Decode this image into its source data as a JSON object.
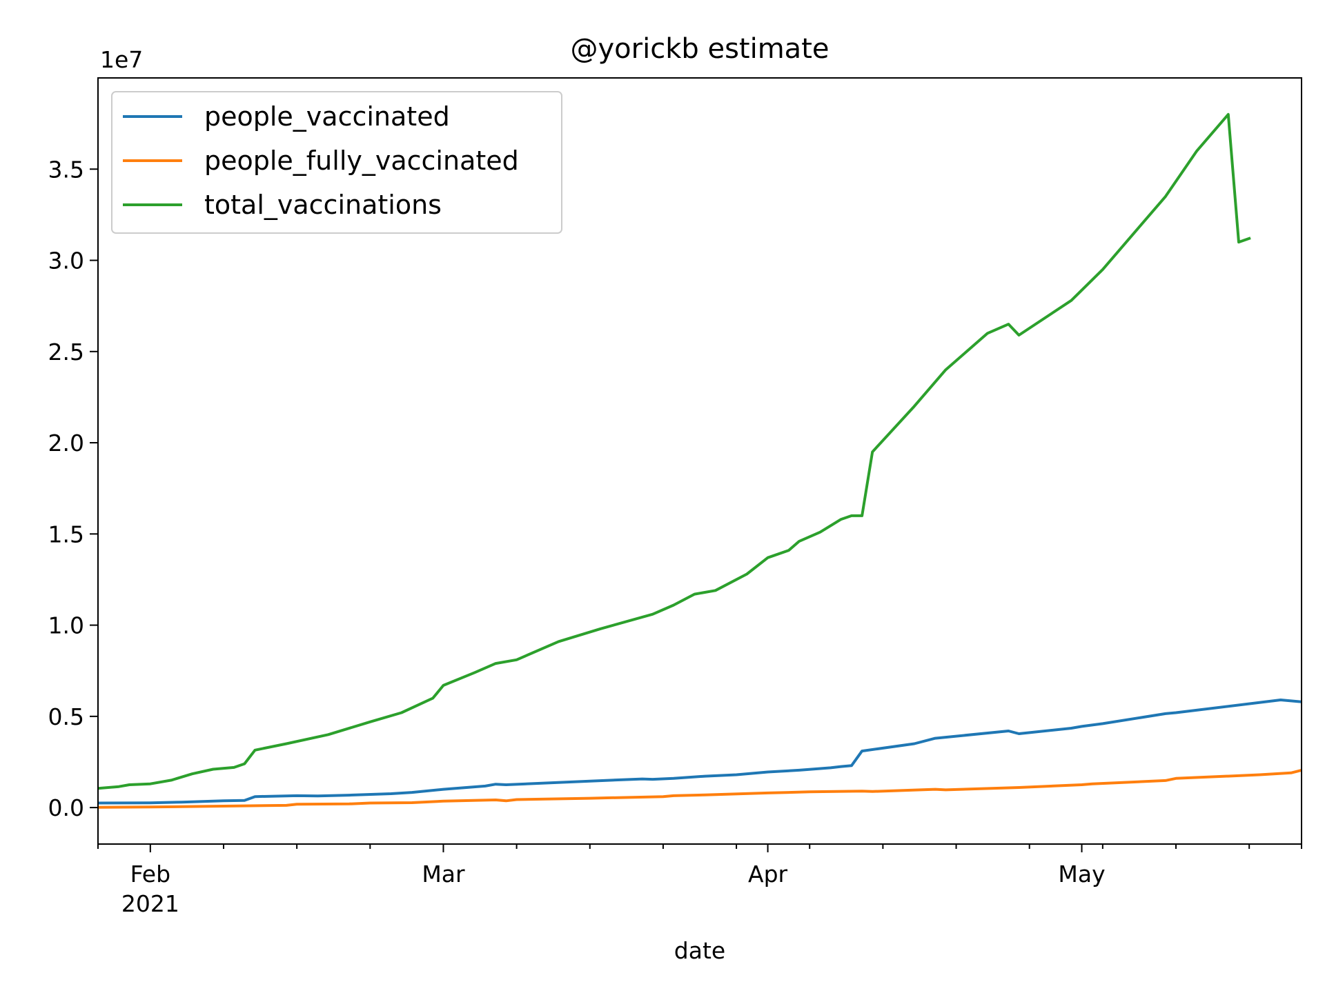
{
  "chart_data": {
    "type": "line",
    "title": "@yorickb estimate",
    "xlabel": "date",
    "ylabel": "",
    "y_offset_label": "1e7",
    "y_scale_factor": 10000000,
    "xlim": [
      "2021-01-27",
      "2021-05-22"
    ],
    "ylim": [
      -2000000,
      40000000
    ],
    "grid": false,
    "legend_position": "upper-left",
    "x_major_ticks": [
      {
        "date": "2021-02-01",
        "label": "Feb",
        "sublabel": "2021"
      },
      {
        "date": "2021-03-01",
        "label": "Mar",
        "sublabel": ""
      },
      {
        "date": "2021-04-01",
        "label": "Apr",
        "sublabel": ""
      },
      {
        "date": "2021-05-01",
        "label": "May",
        "sublabel": ""
      }
    ],
    "x_minor_ticks": [
      "2021-01-27",
      "2021-02-08",
      "2021-02-15",
      "2021-02-22",
      "2021-03-08",
      "2021-03-15",
      "2021-03-22",
      "2021-03-29",
      "2021-04-05",
      "2021-04-12",
      "2021-04-19",
      "2021-04-26",
      "2021-05-03",
      "2021-05-10",
      "2021-05-17"
    ],
    "y_ticks": [
      {
        "value": 0,
        "label": "0.0"
      },
      {
        "value": 5000000,
        "label": "0.5"
      },
      {
        "value": 10000000,
        "label": "1.0"
      },
      {
        "value": 15000000,
        "label": "1.5"
      },
      {
        "value": 20000000,
        "label": "2.0"
      },
      {
        "value": 25000000,
        "label": "2.5"
      },
      {
        "value": 30000000,
        "label": "3.0"
      },
      {
        "value": 35000000,
        "label": "3.5"
      }
    ],
    "series": [
      {
        "name": "people_vaccinated",
        "color": "#1f77b4",
        "points": [
          [
            "2021-01-27",
            250000
          ],
          [
            "2021-02-01",
            260000
          ],
          [
            "2021-02-04",
            300000
          ],
          [
            "2021-02-08",
            370000
          ],
          [
            "2021-02-10",
            390000
          ],
          [
            "2021-02-11",
            600000
          ],
          [
            "2021-02-15",
            650000
          ],
          [
            "2021-02-17",
            640000
          ],
          [
            "2021-02-20",
            680000
          ],
          [
            "2021-02-24",
            760000
          ],
          [
            "2021-02-26",
            830000
          ],
          [
            "2021-03-01",
            1000000
          ],
          [
            "2021-03-05",
            1180000
          ],
          [
            "2021-03-06",
            1280000
          ],
          [
            "2021-03-07",
            1250000
          ],
          [
            "2021-03-11",
            1350000
          ],
          [
            "2021-03-15",
            1450000
          ],
          [
            "2021-03-20",
            1570000
          ],
          [
            "2021-03-21",
            1550000
          ],
          [
            "2021-03-23",
            1600000
          ],
          [
            "2021-03-26",
            1720000
          ],
          [
            "2021-03-29",
            1800000
          ],
          [
            "2021-04-01",
            1950000
          ],
          [
            "2021-04-04",
            2050000
          ],
          [
            "2021-04-07",
            2180000
          ],
          [
            "2021-04-08",
            2250000
          ],
          [
            "2021-04-09",
            2300000
          ],
          [
            "2021-04-10",
            3100000
          ],
          [
            "2021-04-15",
            3500000
          ],
          [
            "2021-04-17",
            3800000
          ],
          [
            "2021-04-24",
            4200000
          ],
          [
            "2021-04-25",
            4050000
          ],
          [
            "2021-04-30",
            4350000
          ],
          [
            "2021-05-01",
            4450000
          ],
          [
            "2021-05-03",
            4600000
          ],
          [
            "2021-05-09",
            5150000
          ],
          [
            "2021-05-10",
            5200000
          ],
          [
            "2021-05-20",
            5900000
          ],
          [
            "2021-05-22",
            5800000
          ]
        ]
      },
      {
        "name": "people_fully_vaccinated",
        "color": "#ff7f0e",
        "points": [
          [
            "2021-01-27",
            10000
          ],
          [
            "2021-02-01",
            30000
          ],
          [
            "2021-02-08",
            80000
          ],
          [
            "2021-02-14",
            120000
          ],
          [
            "2021-02-15",
            180000
          ],
          [
            "2021-02-20",
            200000
          ],
          [
            "2021-02-22",
            250000
          ],
          [
            "2021-02-26",
            270000
          ],
          [
            "2021-03-01",
            350000
          ],
          [
            "2021-03-06",
            420000
          ],
          [
            "2021-03-07",
            370000
          ],
          [
            "2021-03-08",
            440000
          ],
          [
            "2021-03-15",
            510000
          ],
          [
            "2021-03-22",
            600000
          ],
          [
            "2021-03-23",
            650000
          ],
          [
            "2021-03-26",
            690000
          ],
          [
            "2021-04-01",
            800000
          ],
          [
            "2021-04-05",
            860000
          ],
          [
            "2021-04-10",
            900000
          ],
          [
            "2021-04-11",
            880000
          ],
          [
            "2021-04-17",
            1000000
          ],
          [
            "2021-04-18",
            970000
          ],
          [
            "2021-04-25",
            1100000
          ],
          [
            "2021-05-01",
            1250000
          ],
          [
            "2021-05-02",
            1300000
          ],
          [
            "2021-05-09",
            1480000
          ],
          [
            "2021-05-10",
            1600000
          ],
          [
            "2021-05-18",
            1800000
          ],
          [
            "2021-05-21",
            1900000
          ],
          [
            "2021-05-22",
            2050000
          ]
        ]
      },
      {
        "name": "total_vaccinations",
        "color": "#2ca02c",
        "points": [
          [
            "2021-01-27",
            1050000
          ],
          [
            "2021-01-29",
            1150000
          ],
          [
            "2021-01-30",
            1250000
          ],
          [
            "2021-02-01",
            1300000
          ],
          [
            "2021-02-03",
            1500000
          ],
          [
            "2021-02-05",
            1850000
          ],
          [
            "2021-02-07",
            2100000
          ],
          [
            "2021-02-09",
            2200000
          ],
          [
            "2021-02-10",
            2400000
          ],
          [
            "2021-02-11",
            3150000
          ],
          [
            "2021-02-14",
            3500000
          ],
          [
            "2021-02-18",
            4000000
          ],
          [
            "2021-02-22",
            4700000
          ],
          [
            "2021-02-25",
            5200000
          ],
          [
            "2021-02-28",
            6000000
          ],
          [
            "2021-03-01",
            6700000
          ],
          [
            "2021-03-04",
            7400000
          ],
          [
            "2021-03-06",
            7900000
          ],
          [
            "2021-03-08",
            8100000
          ],
          [
            "2021-03-12",
            9100000
          ],
          [
            "2021-03-16",
            9800000
          ],
          [
            "2021-03-21",
            10600000
          ],
          [
            "2021-03-23",
            11100000
          ],
          [
            "2021-03-25",
            11700000
          ],
          [
            "2021-03-27",
            11900000
          ],
          [
            "2021-03-30",
            12800000
          ],
          [
            "2021-04-01",
            13700000
          ],
          [
            "2021-04-03",
            14100000
          ],
          [
            "2021-04-04",
            14600000
          ],
          [
            "2021-04-06",
            15100000
          ],
          [
            "2021-04-08",
            15800000
          ],
          [
            "2021-04-09",
            16000000
          ],
          [
            "2021-04-10",
            16000000
          ],
          [
            "2021-04-11",
            19500000
          ],
          [
            "2021-04-15",
            22000000
          ],
          [
            "2021-04-18",
            24000000
          ],
          [
            "2021-04-22",
            26000000
          ],
          [
            "2021-04-24",
            26500000
          ],
          [
            "2021-04-25",
            25900000
          ],
          [
            "2021-04-30",
            27800000
          ],
          [
            "2021-05-03",
            29500000
          ],
          [
            "2021-05-06",
            31500000
          ],
          [
            "2021-05-09",
            33500000
          ],
          [
            "2021-05-12",
            36000000
          ],
          [
            "2021-05-15",
            38000000
          ],
          [
            "2021-05-16",
            31000000
          ],
          [
            "2021-05-17",
            31200000
          ]
        ]
      }
    ]
  }
}
